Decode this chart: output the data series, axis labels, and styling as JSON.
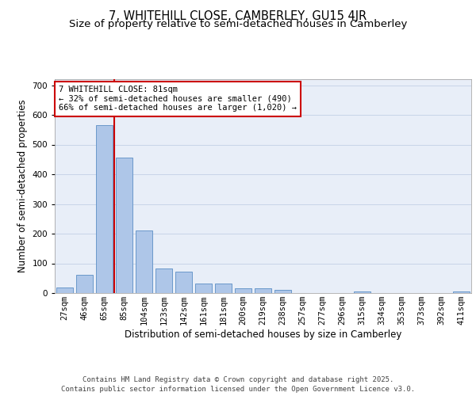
{
  "title": "7, WHITEHILL CLOSE, CAMBERLEY, GU15 4JR",
  "subtitle": "Size of property relative to semi-detached houses in Camberley",
  "xlabel": "Distribution of semi-detached houses by size in Camberley",
  "ylabel": "Number of semi-detached properties",
  "categories": [
    "27sqm",
    "46sqm",
    "65sqm",
    "85sqm",
    "104sqm",
    "123sqm",
    "142sqm",
    "161sqm",
    "181sqm",
    "200sqm",
    "219sqm",
    "238sqm",
    "257sqm",
    "277sqm",
    "296sqm",
    "315sqm",
    "334sqm",
    "353sqm",
    "373sqm",
    "392sqm",
    "411sqm"
  ],
  "values": [
    19,
    62,
    565,
    455,
    210,
    84,
    72,
    32,
    32,
    16,
    16,
    10,
    0,
    0,
    0,
    5,
    0,
    0,
    0,
    0,
    5
  ],
  "bar_color": "#aec6e8",
  "bar_edge_color": "#5b8ec4",
  "ylim": [
    0,
    720
  ],
  "yticks": [
    0,
    100,
    200,
    300,
    400,
    500,
    600,
    700
  ],
  "grid_color": "#c8d4e8",
  "background_color": "#e8eef8",
  "vline_color": "#cc0000",
  "annotation_text": "7 WHITEHILL CLOSE: 81sqm\n← 32% of semi-detached houses are smaller (490)\n66% of semi-detached houses are larger (1,020) →",
  "annotation_box_color": "#cc0000",
  "footer_text": "Contains HM Land Registry data © Crown copyright and database right 2025.\nContains public sector information licensed under the Open Government Licence v3.0.",
  "title_fontsize": 10.5,
  "subtitle_fontsize": 9.5,
  "axis_label_fontsize": 8.5,
  "tick_fontsize": 7.5,
  "annotation_fontsize": 7.5,
  "footer_fontsize": 6.5
}
